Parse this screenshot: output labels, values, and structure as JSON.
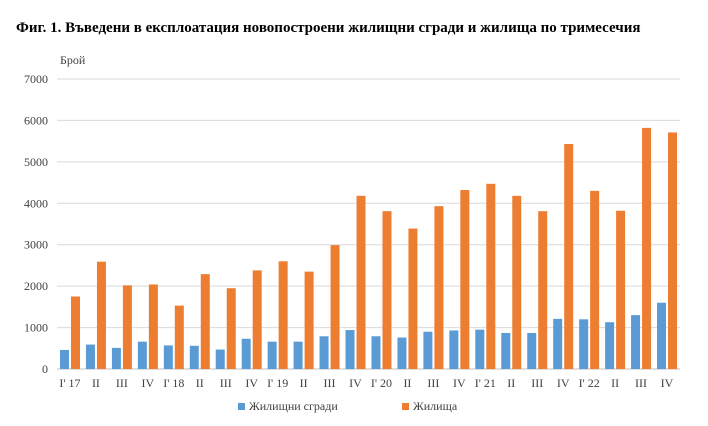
{
  "title": "Фиг. 1. Въведени в експлоатация новопостроени жилищни сгради и жилища по тримесечия",
  "chart_data": {
    "type": "bar",
    "title": "Фиг. 1. Въведени в експлоатация новопостроени жилищни сгради и жилища по тримесечия",
    "ylabel": "Брой",
    "xlabel": "",
    "ylim": [
      0,
      7000
    ],
    "yticks": [
      0,
      1000,
      2000,
      3000,
      4000,
      5000,
      6000,
      7000
    ],
    "grid": true,
    "legend": "bottom",
    "categories": [
      "I' 17",
      "II",
      "III",
      "IV",
      "I' 18",
      "II",
      "III",
      "IV",
      "I' 19",
      "II",
      "III",
      "IV",
      "I' 20",
      "II",
      "III",
      "IV",
      "I' 21",
      "II",
      "III",
      "IV",
      "I' 22",
      "II",
      "III",
      "IV"
    ],
    "series": [
      {
        "name": "Жилищни сгради",
        "color": "#5b9bd5",
        "values": [
          460,
          590,
          510,
          660,
          570,
          560,
          470,
          730,
          660,
          660,
          790,
          940,
          790,
          760,
          900,
          930,
          950,
          870,
          870,
          1210,
          1200,
          1130,
          1300,
          1600
        ]
      },
      {
        "name": "Жилища",
        "color": "#ed7d31",
        "values": [
          1750,
          2590,
          2020,
          2040,
          1530,
          2290,
          1950,
          2380,
          2600,
          2350,
          2990,
          4180,
          3810,
          3390,
          3930,
          4320,
          4470,
          4180,
          3810,
          5430,
          4300,
          3820,
          5820,
          5710
        ]
      }
    ]
  }
}
